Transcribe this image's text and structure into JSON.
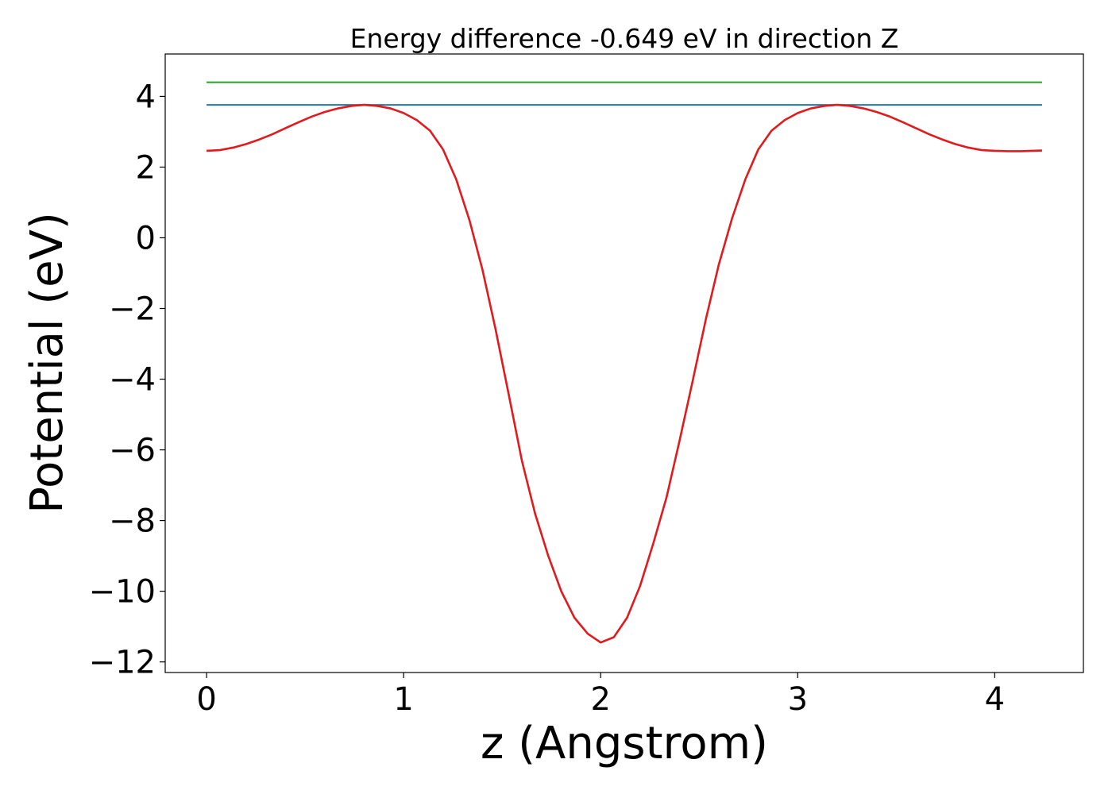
{
  "chart_data": {
    "type": "line",
    "title": "Energy difference -0.649 eV in direction Z",
    "xlabel": "z (Angstrom)",
    "ylabel": "Potential (eV)",
    "xlim": [
      -0.21,
      4.45
    ],
    "ylim": [
      -12.3,
      5.2
    ],
    "xticks": [
      0,
      1,
      2,
      3,
      4
    ],
    "xtick_labels": [
      "0",
      "1",
      "2",
      "3",
      "4"
    ],
    "yticks": [
      4,
      2,
      0,
      -2,
      -4,
      -6,
      -8,
      -10,
      -12
    ],
    "ytick_labels": [
      "4",
      "2",
      "0",
      "−2",
      "−4",
      "−6",
      "−8",
      "−10",
      "−12"
    ],
    "grid": false,
    "series": [
      {
        "color": "#2ca02c",
        "x": [
          0,
          4.24
        ],
        "y": [
          4.4,
          4.4
        ]
      },
      {
        "color": "#1f77b4",
        "x": [
          0,
          4.24
        ],
        "y": [
          3.76,
          3.76
        ]
      },
      {
        "color": "#e31a1c",
        "x": [
          0,
          0.067,
          0.134,
          0.2,
          0.267,
          0.334,
          0.4,
          0.467,
          0.534,
          0.6,
          0.667,
          0.734,
          0.8,
          0.867,
          0.934,
          1.0,
          1.067,
          1.134,
          1.2,
          1.267,
          1.334,
          1.4,
          1.467,
          1.534,
          1.6,
          1.667,
          1.734,
          1.8,
          1.867,
          1.934,
          2.0,
          2.067,
          2.134,
          2.2,
          2.267,
          2.334,
          2.4,
          2.467,
          2.534,
          2.6,
          2.667,
          2.734,
          2.8,
          2.867,
          2.934,
          3.0,
          3.067,
          3.134,
          3.2,
          3.267,
          3.334,
          3.4,
          3.467,
          3.534,
          3.6,
          3.667,
          3.734,
          3.8,
          3.867,
          3.934,
          4.0,
          4.067,
          4.134,
          4.24
        ],
        "y": [
          2.46,
          2.48,
          2.55,
          2.65,
          2.78,
          2.93,
          3.1,
          3.27,
          3.43,
          3.56,
          3.66,
          3.73,
          3.76,
          3.73,
          3.66,
          3.53,
          3.33,
          3.03,
          2.5,
          1.65,
          0.5,
          -0.9,
          -2.6,
          -4.45,
          -6.3,
          -7.8,
          -9.0,
          -10.0,
          -10.75,
          -11.2,
          -11.45,
          -11.3,
          -10.75,
          -9.85,
          -8.65,
          -7.35,
          -5.75,
          -4.05,
          -2.3,
          -0.75,
          0.55,
          1.65,
          2.5,
          3.03,
          3.33,
          3.53,
          3.66,
          3.73,
          3.76,
          3.73,
          3.66,
          3.56,
          3.43,
          3.27,
          3.1,
          2.93,
          2.78,
          2.65,
          2.55,
          2.48,
          2.46,
          2.45,
          2.45,
          2.47
        ]
      }
    ]
  }
}
